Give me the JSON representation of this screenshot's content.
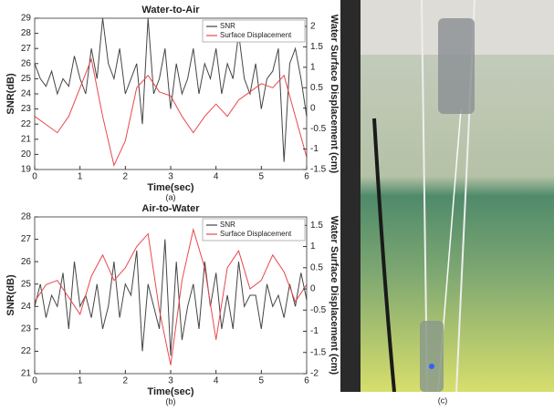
{
  "chart_data": [
    {
      "type": "line",
      "title": "Water-to-Air",
      "xlabel": "Time(sec)",
      "ylabel": "SNR(dB)",
      "y2label": "Water Surface Displacement (cm)",
      "caption": "(a)",
      "xlim": [
        0,
        6
      ],
      "xticks": [
        0,
        1,
        2,
        3,
        4,
        5,
        6
      ],
      "ylim": [
        19,
        29
      ],
      "yticks": [
        19,
        20,
        21,
        22,
        23,
        24,
        25,
        26,
        27,
        28,
        29
      ],
      "y2lim": [
        -1.5,
        2.2
      ],
      "y2ticks": [
        -1.5,
        -1,
        -0.5,
        0,
        0.5,
        1,
        1.5,
        2
      ],
      "legend": "upper right",
      "series": [
        {
          "name": "SNR",
          "color": "#444444",
          "x": [
            0,
            0.125,
            0.25,
            0.375,
            0.5,
            0.625,
            0.75,
            0.875,
            1,
            1.125,
            1.25,
            1.375,
            1.5,
            1.625,
            1.75,
            1.875,
            2,
            2.125,
            2.25,
            2.375,
            2.5,
            2.625,
            2.75,
            2.875,
            3,
            3.125,
            3.25,
            3.375,
            3.5,
            3.625,
            3.75,
            3.875,
            4,
            4.125,
            4.25,
            4.375,
            4.5,
            4.625,
            4.75,
            4.875,
            5,
            5.125,
            5.25,
            5.375,
            5.5,
            5.625,
            5.75,
            5.875,
            6
          ],
          "values": [
            26,
            25,
            24.5,
            25.5,
            24,
            25,
            24.5,
            26.5,
            25,
            24,
            27,
            25,
            29,
            26,
            25,
            27,
            24,
            25,
            26,
            22,
            29,
            24,
            25,
            27,
            23,
            26,
            24,
            25,
            27,
            24,
            26,
            25,
            27,
            24,
            26,
            25,
            28,
            25,
            24,
            26,
            23,
            25,
            25.5,
            27,
            19.5,
            26,
            27,
            25,
            22.5
          ]
        },
        {
          "name": "Surface Displacement",
          "color": "#e8474e",
          "axis": "y2",
          "x": [
            0,
            0.25,
            0.5,
            0.75,
            1,
            1.25,
            1.5,
            1.75,
            2,
            2.25,
            2.5,
            2.75,
            3,
            3.25,
            3.5,
            3.75,
            4,
            4.25,
            4.5,
            4.75,
            5,
            5.25,
            5.5,
            5.75,
            6
          ],
          "values": [
            -0.2,
            -0.4,
            -0.6,
            -0.2,
            0.5,
            1.2,
            -0.2,
            -1.4,
            -0.8,
            0.5,
            0.8,
            0.4,
            0.3,
            -0.2,
            -0.6,
            -0.2,
            0.1,
            -0.2,
            0.2,
            0.4,
            0.6,
            0.5,
            0.8,
            -0.2,
            -1.2
          ]
        }
      ]
    },
    {
      "type": "line",
      "title": "Air-to-Water",
      "xlabel": "Time(sec)",
      "ylabel": "SNR(dB)",
      "y2label": "Water Surface Displacement (cm)",
      "caption": "(b)",
      "xlim": [
        0,
        6
      ],
      "xticks": [
        0,
        1,
        2,
        3,
        4,
        5,
        6
      ],
      "ylim": [
        21,
        28
      ],
      "yticks": [
        21,
        22,
        23,
        24,
        25,
        26,
        27,
        28
      ],
      "y2lim": [
        -2,
        1.7
      ],
      "y2ticks": [
        -2,
        -1.5,
        -1,
        -0.5,
        0,
        0.5,
        1,
        1.5
      ],
      "legend": "upper right",
      "series": [
        {
          "name": "SNR",
          "color": "#444444",
          "x": [
            0,
            0.125,
            0.25,
            0.375,
            0.5,
            0.625,
            0.75,
            0.875,
            1,
            1.125,
            1.25,
            1.375,
            1.5,
            1.625,
            1.75,
            1.875,
            2,
            2.125,
            2.25,
            2.375,
            2.5,
            2.625,
            2.75,
            2.875,
            3,
            3.125,
            3.25,
            3.375,
            3.5,
            3.625,
            3.75,
            3.875,
            4,
            4.125,
            4.25,
            4.375,
            4.5,
            4.625,
            4.75,
            4.875,
            5,
            5.125,
            5.25,
            5.375,
            5.5,
            5.625,
            5.75,
            5.875,
            6
          ],
          "values": [
            24,
            25,
            23.5,
            24.5,
            24,
            25.5,
            23,
            26,
            24,
            24.5,
            23.5,
            25,
            23,
            24,
            26,
            23.5,
            25,
            24.5,
            26.5,
            22,
            25,
            24,
            23,
            27,
            21.8,
            26,
            22.5,
            24,
            25,
            23,
            26,
            24,
            25.5,
            23,
            24.5,
            23,
            26,
            24,
            24.5,
            24.5,
            23,
            25,
            24,
            24.5,
            23.5,
            25,
            24,
            25.5,
            24.3
          ]
        },
        {
          "name": "Surface Displacement",
          "color": "#e8474e",
          "axis": "y2",
          "x": [
            0,
            0.25,
            0.5,
            0.75,
            1,
            1.25,
            1.5,
            1.75,
            2,
            2.25,
            2.5,
            2.75,
            3,
            3.25,
            3.5,
            3.75,
            4,
            4.25,
            4.5,
            4.75,
            5,
            5.25,
            5.5,
            5.75,
            6
          ],
          "values": [
            -0.3,
            0.1,
            0.2,
            -0.2,
            -0.6,
            0.3,
            0.8,
            0.2,
            0.5,
            1.0,
            1.3,
            -0.5,
            -1.8,
            0.2,
            1.4,
            0.5,
            -1.2,
            0.5,
            0.9,
            0,
            0.2,
            0.8,
            0.4,
            -0.3,
            0.1
          ]
        }
      ]
    }
  ],
  "photo": {
    "caption": "(c)"
  }
}
